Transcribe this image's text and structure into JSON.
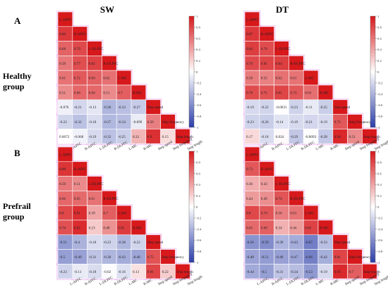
{
  "titles": {
    "col_left": "SW",
    "col_right": "DT"
  },
  "rows": [
    {
      "letter": "A",
      "group": [
        "Healthy",
        "group"
      ]
    },
    {
      "letter": "B",
      "group": [
        "Prefrail",
        "group"
      ]
    }
  ],
  "colorbar": {
    "ticks": [
      "1",
      "0.8",
      "0.6",
      "0.4",
      "0.2",
      "0",
      "-0.2",
      "-0.4",
      "-0.6",
      "-0.8",
      "-1"
    ]
  },
  "colors": {
    "positive": "#d7191c",
    "neutral": "#ffffff",
    "negative": "#2c3ea8",
    "glow": "#e8a3ee"
  },
  "chart_data": [
    {
      "type": "heatmap",
      "title": "SW",
      "group": "Healthy group",
      "variables": [
        "L-APFC",
        "R-APFC",
        "L-DLPFC",
        "R-DLPFC",
        "L-MC",
        "R-MC",
        "Step speed",
        "Step frequency",
        "Step length"
      ],
      "matrix": [
        [
          1
        ],
        [
          0.86,
          1
        ],
        [
          0.68,
          0.79,
          1
        ],
        [
          0.59,
          0.77,
          0.82,
          1
        ],
        [
          0.61,
          0.72,
          0.69,
          0.62,
          1
        ],
        [
          0.51,
          0.66,
          0.66,
          0.51,
          0.7,
          1
        ],
        [
          -0.076,
          -0.21,
          -0.13,
          -0.38,
          -0.33,
          -0.27,
          1
        ],
        [
          -0.22,
          -0.32,
          -0.18,
          -0.37,
          -0.34,
          -0.099,
          0.56,
          1
        ],
        [
          0.0072,
          -0.068,
          -0.19,
          -0.32,
          -0.25,
          0.32,
          0.9,
          0.15,
          1
        ]
      ]
    },
    {
      "type": "heatmap",
      "title": "DT",
      "group": "Healthy group",
      "variables": [
        "L-APFC",
        "R-APFC",
        "L-DLPFC",
        "R-DLPFC",
        "L-MC",
        "R-MC",
        "Step speed",
        "Step frequency",
        "Step length"
      ],
      "matrix": [
        [
          1
        ],
        [
          0.87,
          1
        ],
        [
          0.84,
          0.78,
          1
        ],
        [
          0.79,
          0.81,
          0.84,
          1
        ],
        [
          0.58,
          0.55,
          0.62,
          0.61,
          1
        ],
        [
          0.78,
          0.75,
          0.81,
          0.73,
          0.63,
          1
        ],
        [
          -0.19,
          -0.22,
          -0.0031,
          -0.23,
          -0.11,
          -0.25,
          1
        ],
        [
          -0.23,
          -0.26,
          -0.14,
          -0.19,
          -0.21,
          -0.19,
          0.73,
          1
        ],
        [
          0.17,
          -0.18,
          0.024,
          -0.29,
          -0.0093,
          -0.28,
          0.94,
          0.51,
          1
        ]
      ]
    },
    {
      "type": "heatmap",
      "title": "SW",
      "group": "Prefrail group",
      "variables": [
        "L-APFC",
        "R-APFC",
        "L-DLPFC",
        "R-DLPFC",
        "L-MC",
        "R-MC",
        "Step speed",
        "Step frequency",
        "Step length"
      ],
      "matrix": [
        [
          1
        ],
        [
          0.88,
          1
        ],
        [
          0.59,
          0.51,
          1
        ],
        [
          0.66,
          0.65,
          0.61,
          1
        ],
        [
          0.8,
          0.91,
          0.39,
          0.7,
          1
        ],
        [
          0.76,
          0.92,
          0.23,
          0.48,
          0.85,
          1
        ],
        [
          -0.51,
          -0.4,
          -0.18,
          -0.23,
          -0.38,
          -0.22,
          1
        ],
        [
          -0.5,
          -0.49,
          -0.31,
          -0.38,
          -0.43,
          -0.46,
          0.75,
          1
        ],
        [
          -0.23,
          -0.11,
          -0.18,
          -0.02,
          -0.16,
          0.13,
          0.81,
          0.22,
          1
        ]
      ]
    },
    {
      "type": "heatmap",
      "title": "DT",
      "group": "Prefrail group",
      "variables": [
        "L-APFC",
        "R-APFC",
        "L-DLPFC",
        "R-DLPFC",
        "L-MC",
        "R-MC",
        "Step speed",
        "Step frequency",
        "Step length"
      ],
      "matrix": [
        [
          1
        ],
        [
          0.73,
          1
        ],
        [
          0.36,
          0.43,
          1
        ],
        [
          0.44,
          0.49,
          0.74,
          1
        ],
        [
          0.8,
          0.74,
          0.56,
          0.61,
          1
        ],
        [
          0.65,
          0.69,
          0.34,
          0.44,
          0.82,
          1
        ],
        [
          -0.56,
          -0.59,
          -0.39,
          -0.43,
          -0.67,
          -0.33,
          1
        ],
        [
          -0.48,
          -0.51,
          -0.49,
          -0.47,
          -0.66,
          -0.42,
          0.81,
          1
        ],
        [
          -0.44,
          -0.5,
          -0.31,
          -0.34,
          -0.53,
          -0.19,
          0.93,
          0.7,
          1
        ]
      ]
    }
  ]
}
